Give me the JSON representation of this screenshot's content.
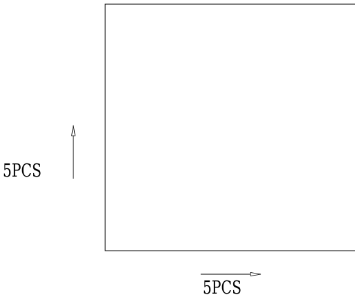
{
  "drawing": {
    "vertical_label": "5PCS",
    "horizontal_label": "5PCS",
    "line_color": "#000000",
    "background_color": "#ffffff",
    "arrow_up_icon": "arrow-up-icon",
    "arrow_right_icon": "arrow-right-icon"
  }
}
